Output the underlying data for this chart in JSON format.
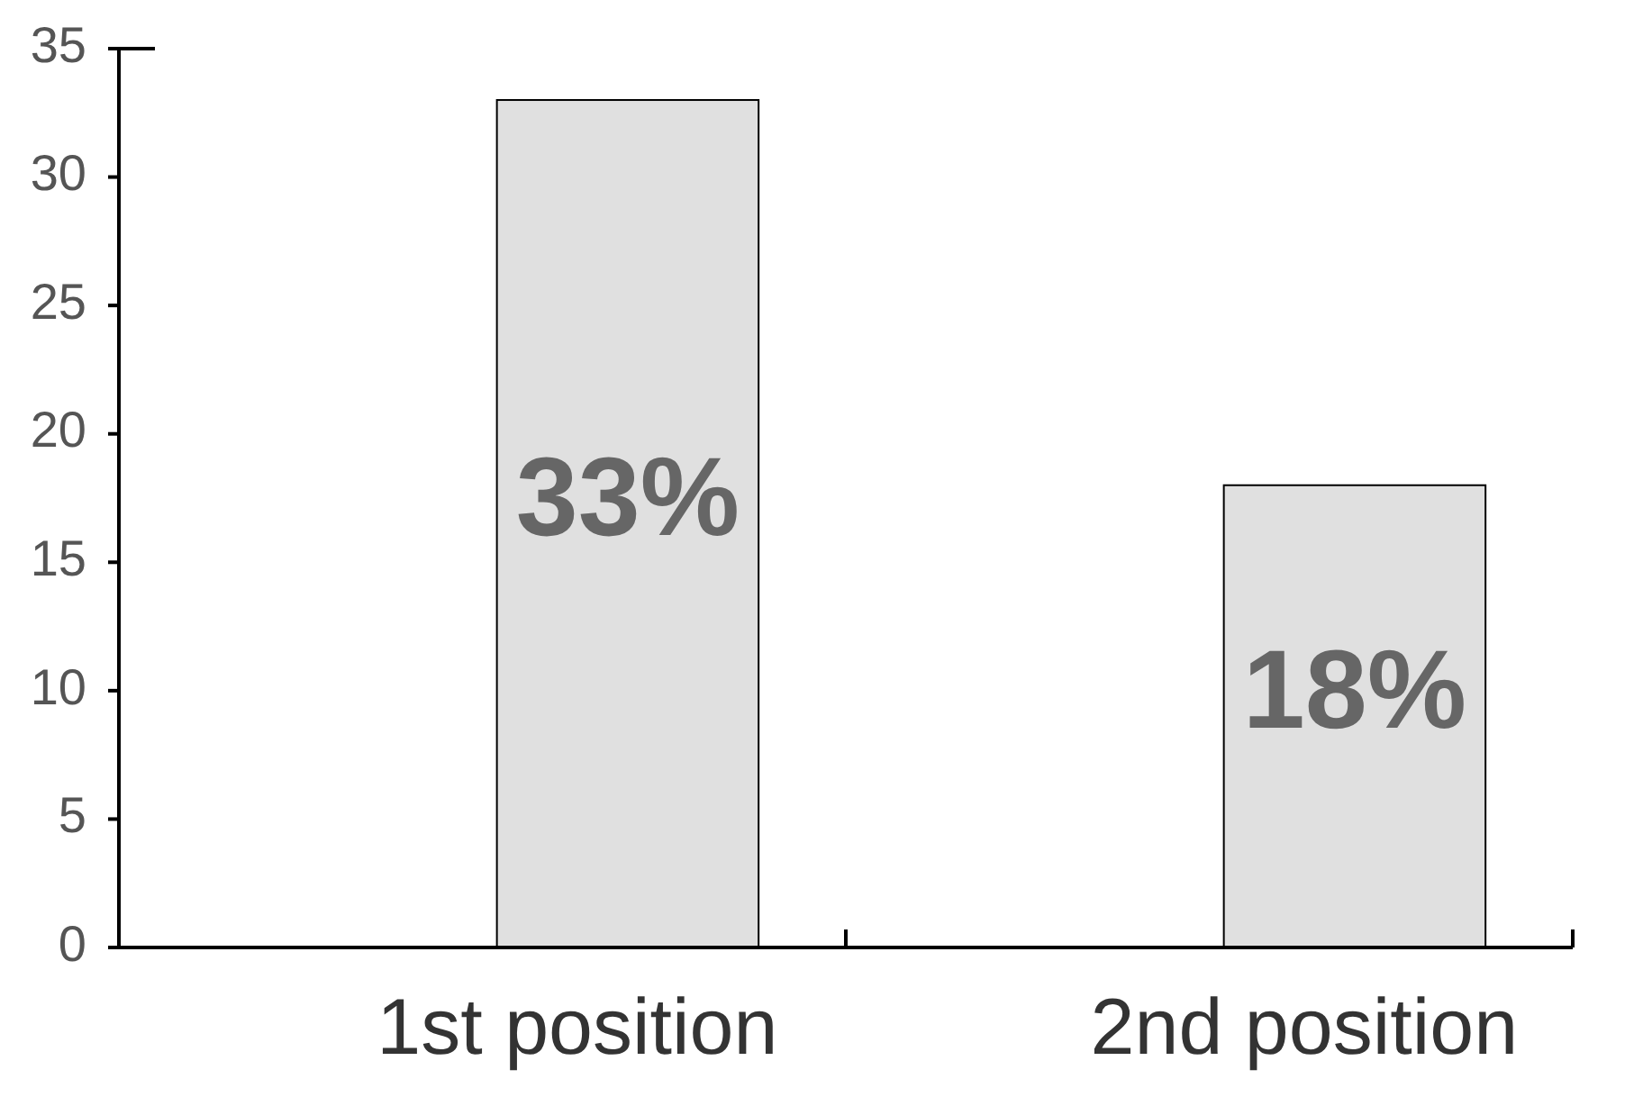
{
  "chart_data": {
    "type": "bar",
    "categories": [
      "1st position",
      "2nd position"
    ],
    "values": [
      33,
      18
    ],
    "value_labels": [
      "33%",
      "18%"
    ],
    "color": "#e0e0e0",
    "ylim": [
      0,
      35
    ],
    "yticks": [
      0,
      5,
      10,
      15,
      20,
      25,
      30,
      35
    ]
  }
}
